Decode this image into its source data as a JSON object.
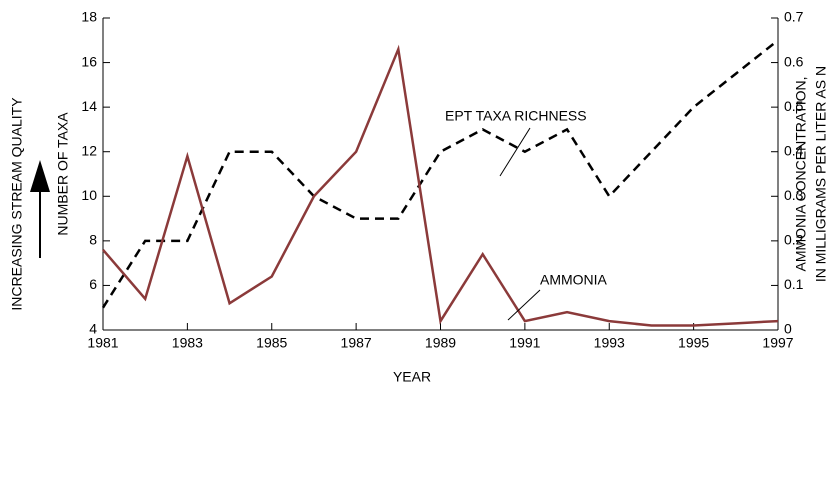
{
  "chart_data": {
    "type": "line",
    "x": [
      1981,
      1982,
      1983,
      1984,
      1985,
      1986,
      1987,
      1988,
      1989,
      1990,
      1991,
      1992,
      1993,
      1994,
      1995,
      1996,
      1997
    ],
    "series": [
      {
        "name": "EPT TAXA RICHNESS",
        "color": "#000000",
        "dashed": true,
        "values": [
          5,
          8,
          8,
          12,
          12,
          10,
          9,
          9,
          12,
          13,
          12,
          13,
          10,
          12,
          14,
          15.5,
          17
        ]
      },
      {
        "name": "AMMONIA",
        "color": "#8b3a3a",
        "axis": "y2",
        "values": [
          0.18,
          0.07,
          0.39,
          0.06,
          0.12,
          0.3,
          0.4,
          0.63,
          0.02,
          0.17,
          0.02,
          0.04,
          0.02,
          0.01,
          0.01,
          0.015,
          0.02
        ]
      }
    ],
    "xlabel": "YEAR",
    "ylabel": "NUMBER OF TAXA",
    "y_annotation": "INCREASING STREAM QUALITY",
    "y2label": [
      "AMMONIA CONCENTRATION,",
      "IN MILLIGRAMS PER LITER AS N"
    ],
    "xlim": [
      1981,
      1997
    ],
    "xticks": [
      1981,
      1983,
      1985,
      1987,
      1989,
      1991,
      1993,
      1995,
      1997
    ],
    "ylim": [
      4,
      18
    ],
    "yticks": [
      4,
      6,
      8,
      10,
      12,
      14,
      16,
      18
    ],
    "y2lim": [
      0,
      0.7
    ],
    "y2ticks": [
      0,
      0.1,
      0.2,
      0.3,
      0.4,
      0.5,
      0.6,
      0.7
    ]
  }
}
